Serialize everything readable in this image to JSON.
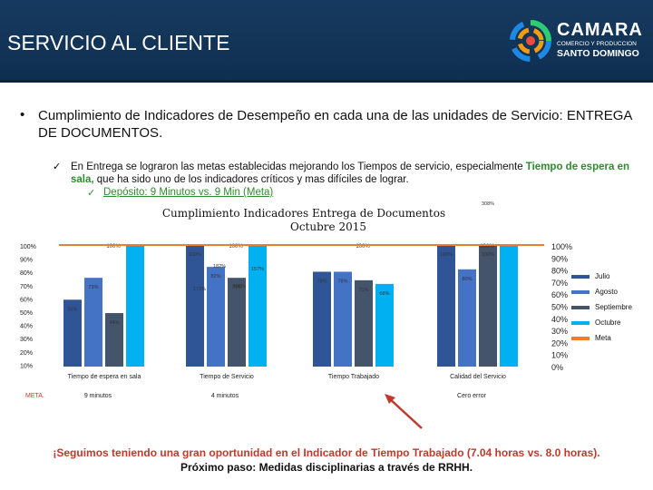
{
  "header": {
    "title": "SERVICIO AL CLIENTE",
    "logo_name": "CAMARA",
    "logo_sub1": "COMERCIO Y PRODUCCION",
    "logo_sub2": "SANTO DOMINGO"
  },
  "content": {
    "bullet": "•",
    "heading": "Cumplimiento de Indicadores de Desempeño en cada una de las unidades de Servicio: ENTREGA DE DOCUMENTOS.",
    "check": "✓",
    "sub_pre": "En Entrega se lograron las metas establecidas mejorando los Tiempos de servicio, especialmente ",
    "sub_highlight": "Tiempo de espera en sala,",
    "sub_post": " que ha sido uno de los indicadores críticos y mas difíciles de lograr.",
    "sub2": "Depósito: 9 Minutos vs. 9 Min (Meta)"
  },
  "chart_data": {
    "type": "bar",
    "title": "Cumplimiento Indicadores Entrega de Documentos",
    "subtitle": "Octubre 2015",
    "categories": [
      "Tiempo de espera en sala",
      "Tiempo de Servicio",
      "Tiempo Trabajado",
      "Calidad del Servicio"
    ],
    "meta_label": "META.",
    "meta_values": [
      "9 minutos",
      "4 minutos",
      "",
      "Cero error"
    ],
    "series": [
      {
        "name": "Julio",
        "values": [
          55,
          100,
          78,
          100
        ],
        "labels": [
          "55%",
          "100%",
          "78%",
          "100%"
        ],
        "color": "#2f5597"
      },
      {
        "name": "Agosto",
        "values": [
          73,
          82,
          78,
          80
        ],
        "labels": [
          "73%",
          "82%",
          "78%",
          "80%"
        ],
        "color": "#4472c4"
      },
      {
        "name": "Septiembre",
        "values": [
          44,
          73,
          71,
          100
        ],
        "labels": [
          "44%",
          "73%",
          "71%",
          "100%"
        ],
        "color": "#44546a"
      },
      {
        "name": "Octubre",
        "values": [
          100,
          100,
          68,
          100
        ],
        "labels": [
          "100%",
          "100%",
          "68%",
          "100%"
        ],
        "color": "#00b0f0"
      },
      {
        "name": "Meta",
        "values": [
          100,
          100,
          100,
          100
        ],
        "color": "#ed7d31"
      }
    ],
    "top_labels": [
      "100%",
      "100%",
      "100%",
      "100%"
    ],
    "extra_labels": [
      "182%",
      "157%",
      "172%",
      "150%",
      "308%"
    ],
    "left_ticks": [
      "100%",
      "90%",
      "80%",
      "70%",
      "60%",
      "50%",
      "40%",
      "30%",
      "20%",
      "10%"
    ],
    "right_ticks": [
      "100%",
      "90%",
      "80%",
      "70%",
      "60%",
      "50%",
      "40%",
      "30%",
      "20%",
      "10%",
      "0%"
    ],
    "ylim": [
      0,
      100
    ]
  },
  "footer": {
    "line1": "¡Seguimos teniendo una gran oportunidad en el Indicador de Tiempo Trabajado (7.04 horas vs. 8.0 horas).",
    "line2": "Próximo paso: Medidas disciplinarias a través de RRHH."
  },
  "colors": {
    "header_bg": "#163a5f",
    "accent": "#c0392b",
    "green": "#2e8b2e"
  }
}
